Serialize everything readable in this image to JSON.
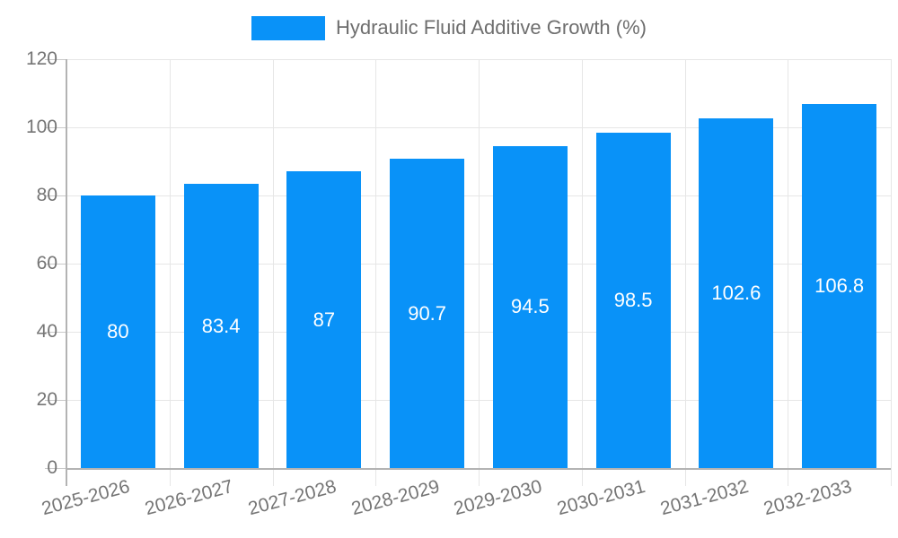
{
  "chart_data": {
    "type": "bar",
    "title": "Hydraulic Fluid Additive Growth (%)",
    "legend": {
      "label": "Hydraulic Fluid Additive Growth (%)",
      "position": "top-center"
    },
    "categories": [
      "2025-2026",
      "2026-2027",
      "2027-2028",
      "2028-2029",
      "2029-2030",
      "2030-2031",
      "2031-2032",
      "2032-2033"
    ],
    "series": [
      {
        "name": "Hydraulic Fluid Additive Growth (%)",
        "values": [
          80,
          83.4,
          87,
          90.7,
          94.5,
          98.5,
          102.6,
          106.8
        ]
      }
    ],
    "value_labels": [
      "80",
      "83.4",
      "87",
      "90.7",
      "94.5",
      "98.5",
      "102.6",
      "106.8"
    ],
    "y_ticks": [
      0,
      20,
      40,
      60,
      80,
      100,
      120
    ],
    "ylim": [
      0,
      120
    ],
    "xlabel": "",
    "ylabel": "",
    "grid": true,
    "x_label_rotation_deg": -15,
    "colors": {
      "bar": "#0992f8",
      "value_label_text": "#ffffff",
      "axis_text": "#757575",
      "legend_text": "#6e6e6e",
      "grid_line": "#e6e6e6",
      "axis_line": "#b3b3b3",
      "tick_line": "#c9c9c9",
      "background": "#ffffff"
    }
  }
}
